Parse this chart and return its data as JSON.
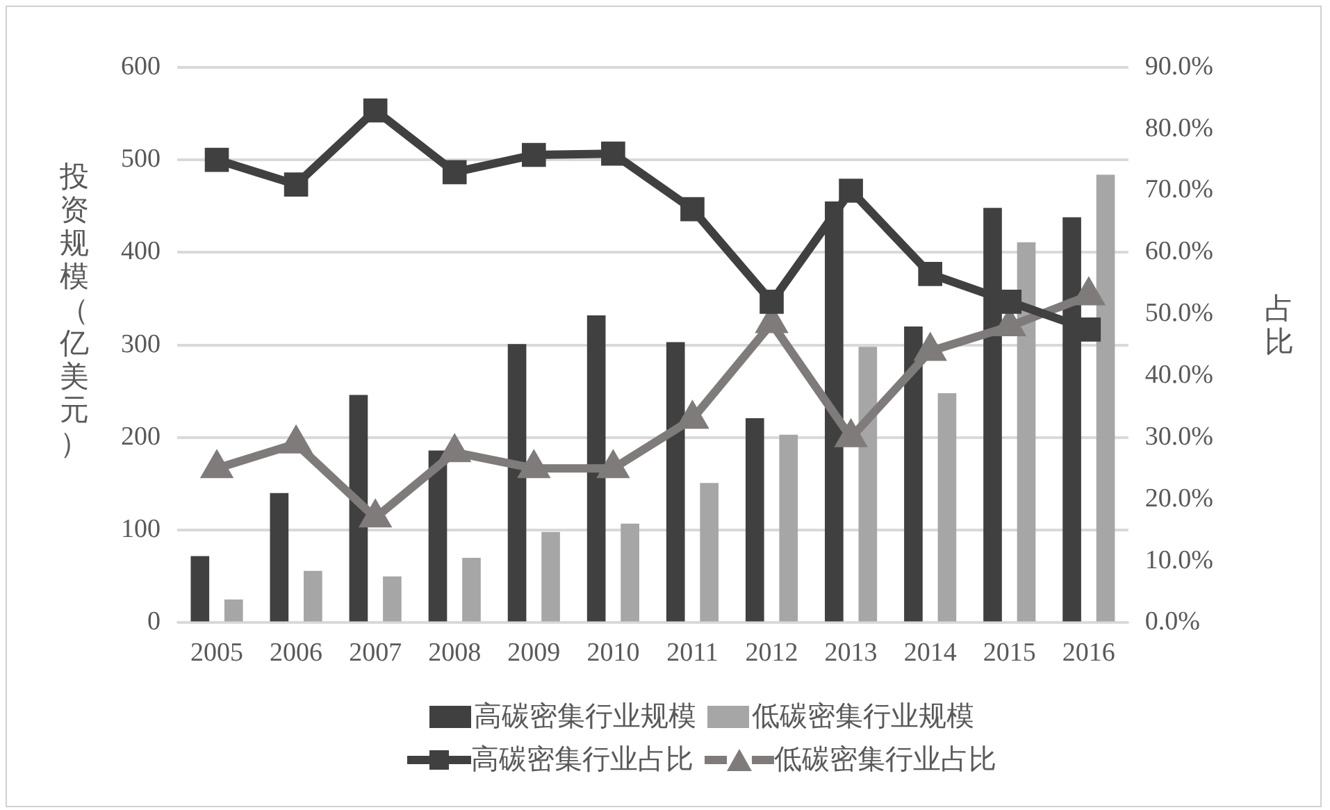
{
  "chart_data": {
    "type": "bar",
    "ylabel": "投资规模（亿美元）",
    "y2label": "占比",
    "categories": [
      "2005",
      "2006",
      "2007",
      "2008",
      "2009",
      "2010",
      "2011",
      "2012",
      "2013",
      "2014",
      "2015",
      "2016"
    ],
    "series": [
      {
        "name": "高碳密集行业规模",
        "color": "#404040",
        "values": [
          72,
          140,
          246,
          186,
          301,
          332,
          303,
          221,
          455,
          320,
          448,
          438
        ]
      },
      {
        "name": "低碳密集行业规模",
        "color": "#a6a6a6",
        "values": [
          25,
          56,
          50,
          70,
          98,
          107,
          151,
          203,
          298,
          248,
          411,
          484
        ]
      },
      {
        "name": "高碳密集行业占比",
        "type": "line",
        "axis": "y2",
        "marker": "square",
        "color": "#404040",
        "values": [
          75,
          71,
          83,
          73,
          75.8,
          76,
          67,
          52,
          70,
          56.5,
          52,
          47.5
        ]
      },
      {
        "name": "低碳密集行业占比",
        "type": "line",
        "axis": "y2",
        "marker": "triangle",
        "color": "#7f7b7b",
        "values": [
          25,
          29,
          17,
          27.6,
          25,
          25,
          33,
          48.5,
          30,
          44,
          48,
          53
        ]
      }
    ],
    "ylim": [
      0,
      600
    ],
    "yticks": [
      0,
      100,
      200,
      300,
      400,
      500,
      600
    ],
    "y2lim": [
      0,
      90
    ],
    "y2ticks": [
      {
        "value": 0,
        "label": "0.0%"
      },
      {
        "value": 10,
        "label": "10.0%"
      },
      {
        "value": 20,
        "label": "20.0%"
      },
      {
        "value": 30,
        "label": "30.0%"
      },
      {
        "value": 40,
        "label": "40.0%"
      },
      {
        "value": 50,
        "label": "50.0%"
      },
      {
        "value": 60,
        "label": "60.0%"
      },
      {
        "value": 70,
        "label": "70.0%"
      },
      {
        "value": 80,
        "label": "80.0%"
      },
      {
        "value": 90,
        "label": "90.0%"
      }
    ],
    "grid": "y",
    "legend": "bottom",
    "line_style": "solid"
  }
}
